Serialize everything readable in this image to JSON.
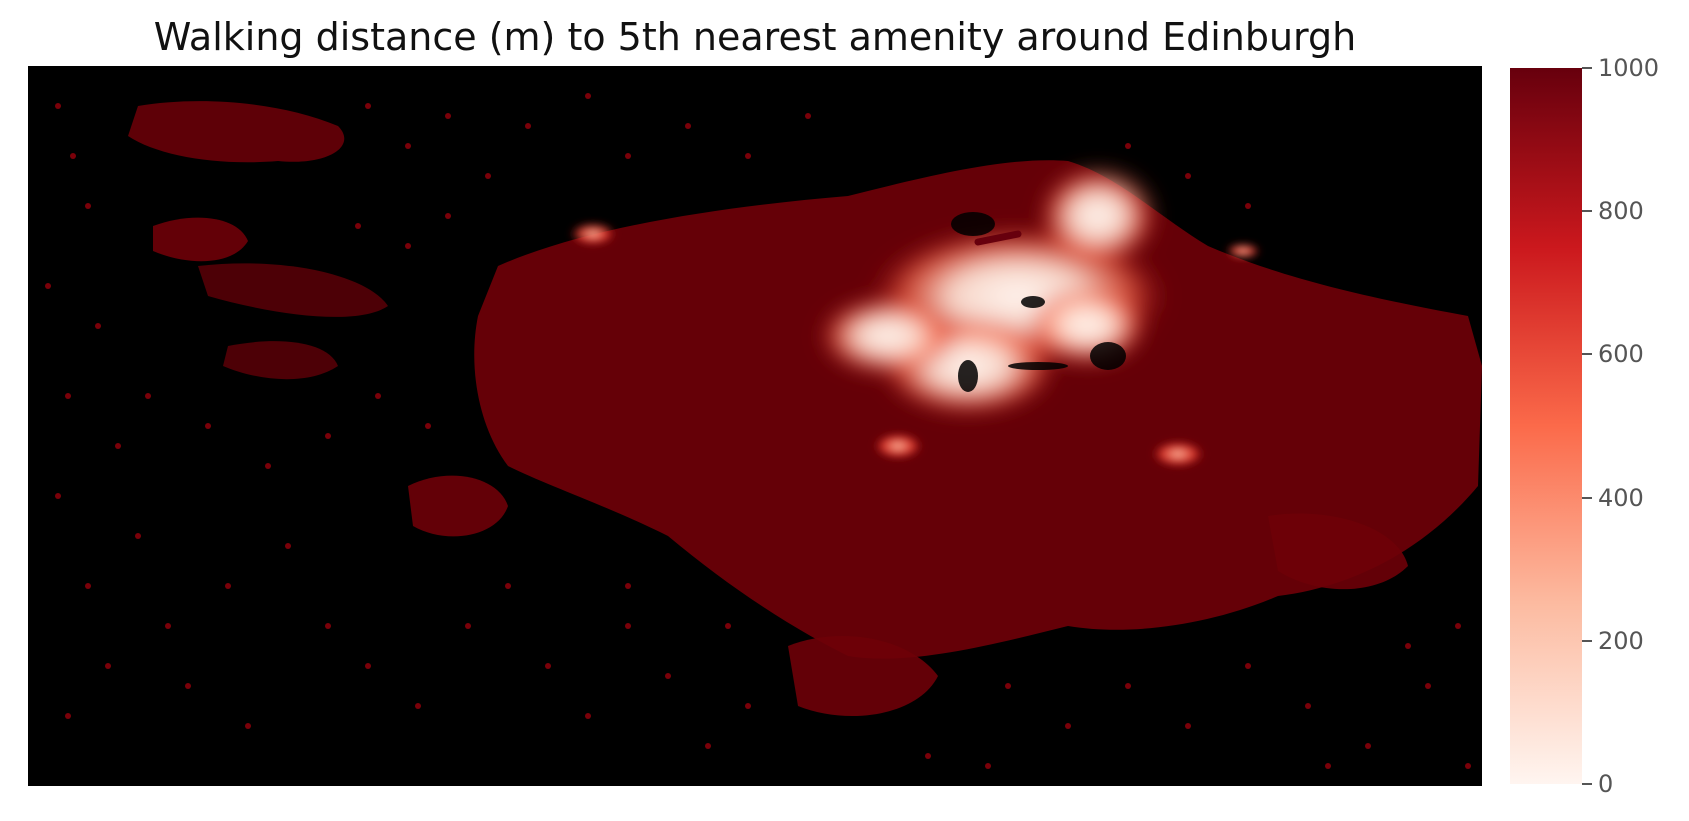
{
  "map": {
    "title": "Walking distance (m) to 5th nearest amenity around Edinburgh",
    "background_color": "#000000",
    "colormap": "Reds (reversed)",
    "region": "Edinburgh"
  },
  "colorbar": {
    "min": 0,
    "max": 1000,
    "ticks": [
      {
        "value": 0,
        "label": "0"
      },
      {
        "value": 200,
        "label": "200"
      },
      {
        "value": 400,
        "label": "400"
      },
      {
        "value": 600,
        "label": "600"
      },
      {
        "value": 800,
        "label": "800"
      },
      {
        "value": 1000,
        "label": "1000"
      }
    ],
    "gradient_colors": [
      "#fff5f0",
      "#fcbba1",
      "#fb6a4a",
      "#cb181d",
      "#67000d"
    ]
  }
}
